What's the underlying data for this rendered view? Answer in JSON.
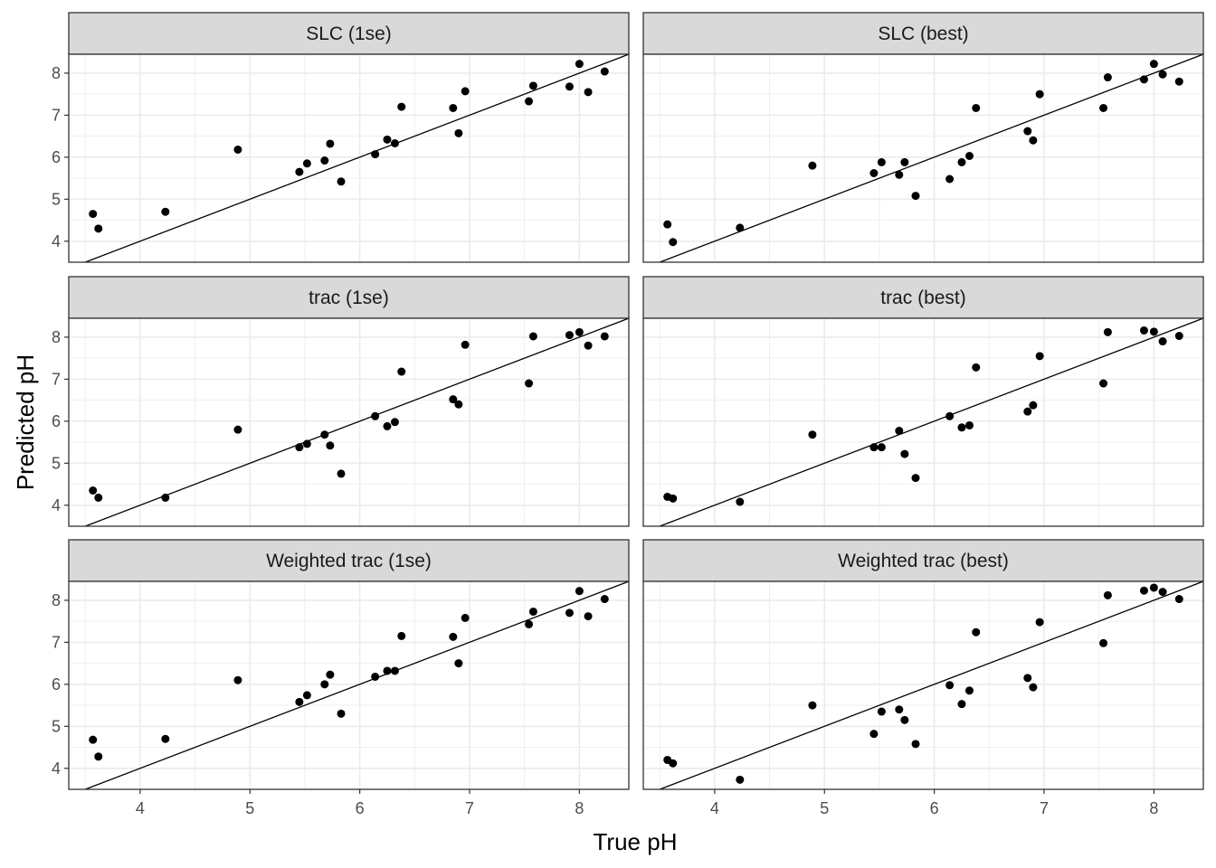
{
  "chart_data": {
    "type": "scatter",
    "facet_layout": "3 rows x 2 columns",
    "xlabel": "True pH",
    "ylabel": "Predicted pH",
    "xlim": [
      3.35,
      8.45
    ],
    "ylim": [
      3.5,
      8.45
    ],
    "x_ticks": [
      4,
      5,
      6,
      7,
      8
    ],
    "y_ticks": [
      4,
      5,
      6,
      7,
      8
    ],
    "grid": true,
    "reference_line": "y = x",
    "colors": {
      "points": "#000000",
      "strip_fill": "#d9d9d9",
      "panel_border": "#333333",
      "grid": "#ebebeb"
    },
    "panels": [
      {
        "title": "SLC (1se)",
        "points": [
          [
            3.57,
            4.65
          ],
          [
            3.62,
            4.3
          ],
          [
            4.23,
            4.7
          ],
          [
            4.89,
            6.18
          ],
          [
            5.45,
            5.65
          ],
          [
            5.52,
            5.85
          ],
          [
            5.68,
            5.92
          ],
          [
            5.73,
            6.32
          ],
          [
            5.83,
            5.42
          ],
          [
            6.14,
            6.07
          ],
          [
            6.25,
            6.42
          ],
          [
            6.32,
            6.33
          ],
          [
            6.38,
            7.2
          ],
          [
            6.85,
            7.17
          ],
          [
            6.9,
            6.57
          ],
          [
            6.96,
            7.57
          ],
          [
            7.54,
            7.33
          ],
          [
            7.58,
            7.7
          ],
          [
            7.91,
            7.68
          ],
          [
            8.0,
            8.22
          ],
          [
            8.08,
            7.55
          ],
          [
            8.23,
            8.04
          ]
        ]
      },
      {
        "title": "SLC (best)",
        "points": [
          [
            3.57,
            4.4
          ],
          [
            3.62,
            3.98
          ],
          [
            4.23,
            4.32
          ],
          [
            4.89,
            5.8
          ],
          [
            5.45,
            5.62
          ],
          [
            5.52,
            5.88
          ],
          [
            5.68,
            5.58
          ],
          [
            5.73,
            5.88
          ],
          [
            5.83,
            5.08
          ],
          [
            6.14,
            5.48
          ],
          [
            6.25,
            5.88
          ],
          [
            6.32,
            6.03
          ],
          [
            6.38,
            7.17
          ],
          [
            6.85,
            6.62
          ],
          [
            6.9,
            6.4
          ],
          [
            6.96,
            7.5
          ],
          [
            7.54,
            7.17
          ],
          [
            7.58,
            7.9
          ],
          [
            7.91,
            7.85
          ],
          [
            8.0,
            8.22
          ],
          [
            8.08,
            7.97
          ],
          [
            8.23,
            7.8
          ]
        ]
      },
      {
        "title": "trac (1se)",
        "points": [
          [
            3.57,
            4.35
          ],
          [
            3.62,
            4.18
          ],
          [
            4.23,
            4.18
          ],
          [
            4.89,
            5.8
          ],
          [
            5.45,
            5.38
          ],
          [
            5.52,
            5.46
          ],
          [
            5.68,
            5.68
          ],
          [
            5.73,
            5.42
          ],
          [
            5.83,
            4.75
          ],
          [
            6.14,
            6.12
          ],
          [
            6.25,
            5.88
          ],
          [
            6.32,
            5.98
          ],
          [
            6.38,
            7.18
          ],
          [
            6.85,
            6.52
          ],
          [
            6.9,
            6.4
          ],
          [
            6.96,
            7.82
          ],
          [
            7.54,
            6.9
          ],
          [
            7.58,
            8.02
          ],
          [
            7.91,
            8.05
          ],
          [
            8.0,
            8.12
          ],
          [
            8.08,
            7.8
          ],
          [
            8.23,
            8.02
          ]
        ]
      },
      {
        "title": "trac (best)",
        "points": [
          [
            3.57,
            4.2
          ],
          [
            3.62,
            4.16
          ],
          [
            4.23,
            4.08
          ],
          [
            4.89,
            5.68
          ],
          [
            5.45,
            5.38
          ],
          [
            5.52,
            5.38
          ],
          [
            5.68,
            5.77
          ],
          [
            5.73,
            5.22
          ],
          [
            5.83,
            4.65
          ],
          [
            6.14,
            6.12
          ],
          [
            6.25,
            5.85
          ],
          [
            6.32,
            5.9
          ],
          [
            6.38,
            7.28
          ],
          [
            6.85,
            6.23
          ],
          [
            6.9,
            6.38
          ],
          [
            6.96,
            7.55
          ],
          [
            7.54,
            6.9
          ],
          [
            7.58,
            8.12
          ],
          [
            7.91,
            8.16
          ],
          [
            8.0,
            8.13
          ],
          [
            8.08,
            7.9
          ],
          [
            8.23,
            8.03
          ]
        ]
      },
      {
        "title": "Weighted trac (1se)",
        "points": [
          [
            3.57,
            4.68
          ],
          [
            3.62,
            4.28
          ],
          [
            4.23,
            4.7
          ],
          [
            4.89,
            6.1
          ],
          [
            5.45,
            5.58
          ],
          [
            5.52,
            5.74
          ],
          [
            5.68,
            6.0
          ],
          [
            5.73,
            6.23
          ],
          [
            5.83,
            5.3
          ],
          [
            6.14,
            6.18
          ],
          [
            6.25,
            6.32
          ],
          [
            6.32,
            6.32
          ],
          [
            6.38,
            7.15
          ],
          [
            6.85,
            7.13
          ],
          [
            6.9,
            6.5
          ],
          [
            6.96,
            7.58
          ],
          [
            7.54,
            7.43
          ],
          [
            7.58,
            7.73
          ],
          [
            7.91,
            7.7
          ],
          [
            8.0,
            8.22
          ],
          [
            8.08,
            7.62
          ],
          [
            8.23,
            8.03
          ]
        ]
      },
      {
        "title": "Weighted trac (best)",
        "points": [
          [
            3.57,
            4.2
          ],
          [
            3.62,
            4.12
          ],
          [
            4.23,
            3.73
          ],
          [
            4.89,
            5.5
          ],
          [
            5.45,
            4.82
          ],
          [
            5.52,
            5.35
          ],
          [
            5.68,
            5.4
          ],
          [
            5.73,
            5.15
          ],
          [
            5.83,
            4.58
          ],
          [
            6.14,
            5.98
          ],
          [
            6.25,
            5.53
          ],
          [
            6.32,
            5.85
          ],
          [
            6.38,
            7.24
          ],
          [
            6.85,
            6.15
          ],
          [
            6.9,
            5.93
          ],
          [
            6.96,
            7.48
          ],
          [
            7.54,
            6.98
          ],
          [
            7.58,
            8.12
          ],
          [
            7.91,
            8.23
          ],
          [
            8.0,
            8.3
          ],
          [
            8.08,
            8.2
          ],
          [
            8.23,
            8.03
          ]
        ]
      }
    ]
  }
}
